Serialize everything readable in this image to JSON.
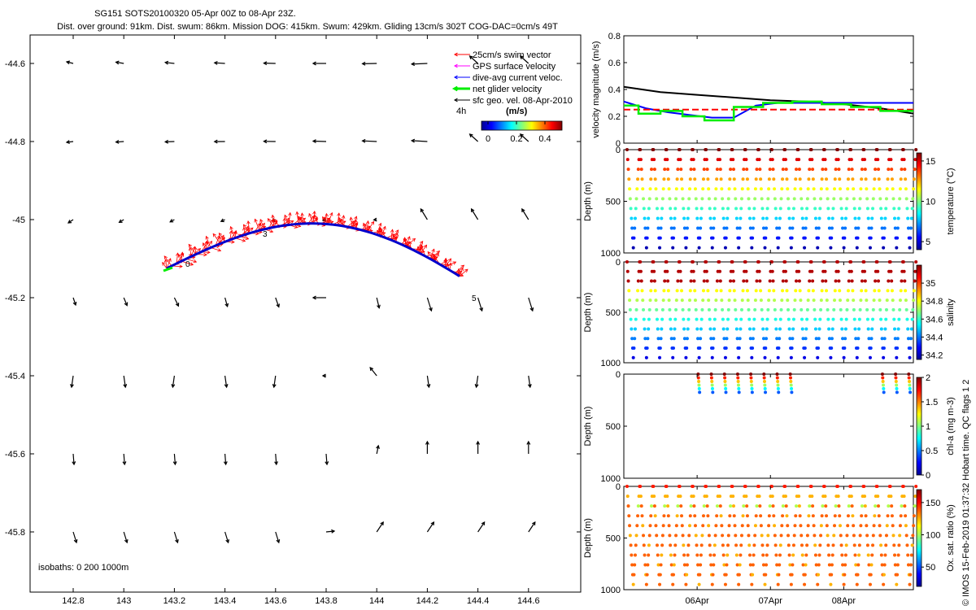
{
  "header": {
    "title": "SG151 SOTS20100320 05-Apr 00Z to 08-Apr 23Z.",
    "subtitle": "Dist. over ground: 91km. Dist. swum: 86km. Mission DOG: 415km. Swum: 429km. Gliding 13cm/s 302T COG-DAC=0cm/s 49T"
  },
  "credit": "© IMOS 15-Feb-2019 01:37:32 Hobart time. QC flags 1  2",
  "map": {
    "xticks": [
      "142.8",
      "143",
      "143.2",
      "143.4",
      "143.6",
      "143.8",
      "144",
      "144.2",
      "144.4",
      "144.6"
    ],
    "yticks": [
      "-44.6",
      "-44.8",
      "-45",
      "-45.2",
      "-45.4",
      "-45.6",
      "-45.8"
    ],
    "legend": [
      {
        "label": "25cm/s swim vector",
        "color": "#ff0000"
      },
      {
        "label": "GPS surface velocity",
        "color": "#ff00ff"
      },
      {
        "label": "dive-avg current veloc.",
        "color": "#0000ff"
      },
      {
        "label": "net glider velocity",
        "color": "#00ee00"
      },
      {
        "label": "sfc geo. vel. 08-Apr-2010",
        "color": "#000000"
      }
    ],
    "colorbar": {
      "label": "(m/s)",
      "ticks": [
        "0",
        "0.2",
        "0.4"
      ],
      "prefix": "4h"
    },
    "isobaths": "isobaths: 0   200   1000m",
    "track_labels": [
      "0",
      "3",
      "5"
    ]
  },
  "chart_data": [
    {
      "type": "line",
      "ylabel": "velocity magnitude (m/s)",
      "ylim": [
        0,
        0.8
      ],
      "yticks": [
        "0",
        "0.2",
        "0.4",
        "0.6",
        "0.8"
      ],
      "x_range": [
        "05-Apr-2010 00:00",
        "09-Apr-2010 00:00"
      ],
      "series": [
        {
          "color": "#000000",
          "x": [
            0,
            0.5,
            1,
            1.5,
            2,
            2.5,
            3,
            3.5,
            3.95
          ],
          "values": [
            0.42,
            0.38,
            0.36,
            0.34,
            0.32,
            0.31,
            0.29,
            0.26,
            0.22
          ]
        },
        {
          "color": "#0000ff",
          "x": [
            0,
            0.3,
            0.6,
            0.9,
            1.2,
            1.5,
            1.8,
            2.1,
            2.5,
            3,
            3.5,
            3.95
          ],
          "values": [
            0.31,
            0.26,
            0.23,
            0.21,
            0.19,
            0.19,
            0.28,
            0.3,
            0.3,
            0.3,
            0.3,
            0.3
          ]
        },
        {
          "color": "#ff0000",
          "dash": true,
          "x": [
            0,
            3.95
          ],
          "values": [
            0.25,
            0.25
          ]
        },
        {
          "color": "#00ee00",
          "step": true,
          "x": [
            0,
            0.2,
            0.2,
            0.5,
            0.5,
            0.8,
            0.8,
            1.1,
            1.1,
            1.5,
            1.5,
            1.9,
            1.9,
            2.3,
            2.3,
            2.7,
            2.7,
            3.1,
            3.1,
            3.5,
            3.5,
            3.95
          ],
          "values": [
            0.28,
            0.28,
            0.22,
            0.22,
            0.24,
            0.24,
            0.2,
            0.2,
            0.17,
            0.17,
            0.27,
            0.27,
            0.3,
            0.3,
            0.31,
            0.31,
            0.29,
            0.29,
            0.27,
            0.27,
            0.24,
            0.24
          ]
        }
      ]
    },
    {
      "type": "scatter",
      "ylabel": "Depth (m)",
      "colorbar_label": "temperature (°C)",
      "ylim": [
        0,
        1000
      ],
      "yticks": [
        "0",
        "500",
        "1000"
      ],
      "cticks": [
        "5",
        "10",
        "15"
      ],
      "crange": [
        4,
        16
      ],
      "cycles": 22
    },
    {
      "type": "scatter",
      "ylabel": "Depth (m)",
      "colorbar_label": "salinity",
      "ylim": [
        0,
        1000
      ],
      "yticks": [
        "0",
        "500",
        "1000"
      ],
      "cticks": [
        "34.2",
        "34.4",
        "34.6",
        "34.8",
        "35"
      ],
      "crange": [
        34.15,
        35.2
      ],
      "cycles": 22
    },
    {
      "type": "scatter",
      "ylabel": "Depth (m)",
      "colorbar_label": "chl-a (mg m-3)",
      "ylim": [
        0,
        1000
      ],
      "yticks": [
        "0",
        "500",
        "1000"
      ],
      "cticks": [
        "0",
        "0.5",
        "1",
        "1.5",
        "2"
      ],
      "crange": [
        0,
        2
      ],
      "cycles": 22
    },
    {
      "type": "scatter",
      "ylabel": "Depth (m)",
      "colorbar_label": "Ox. sat. ratio (%)",
      "ylim": [
        0,
        1000
      ],
      "yticks": [
        "0",
        "500",
        "1000"
      ],
      "cticks": [
        "50",
        "100",
        "150"
      ],
      "crange": [
        20,
        170
      ],
      "cycles": 22
    }
  ],
  "xtime_ticks": [
    "06Apr",
    "07Apr",
    "08Apr"
  ]
}
